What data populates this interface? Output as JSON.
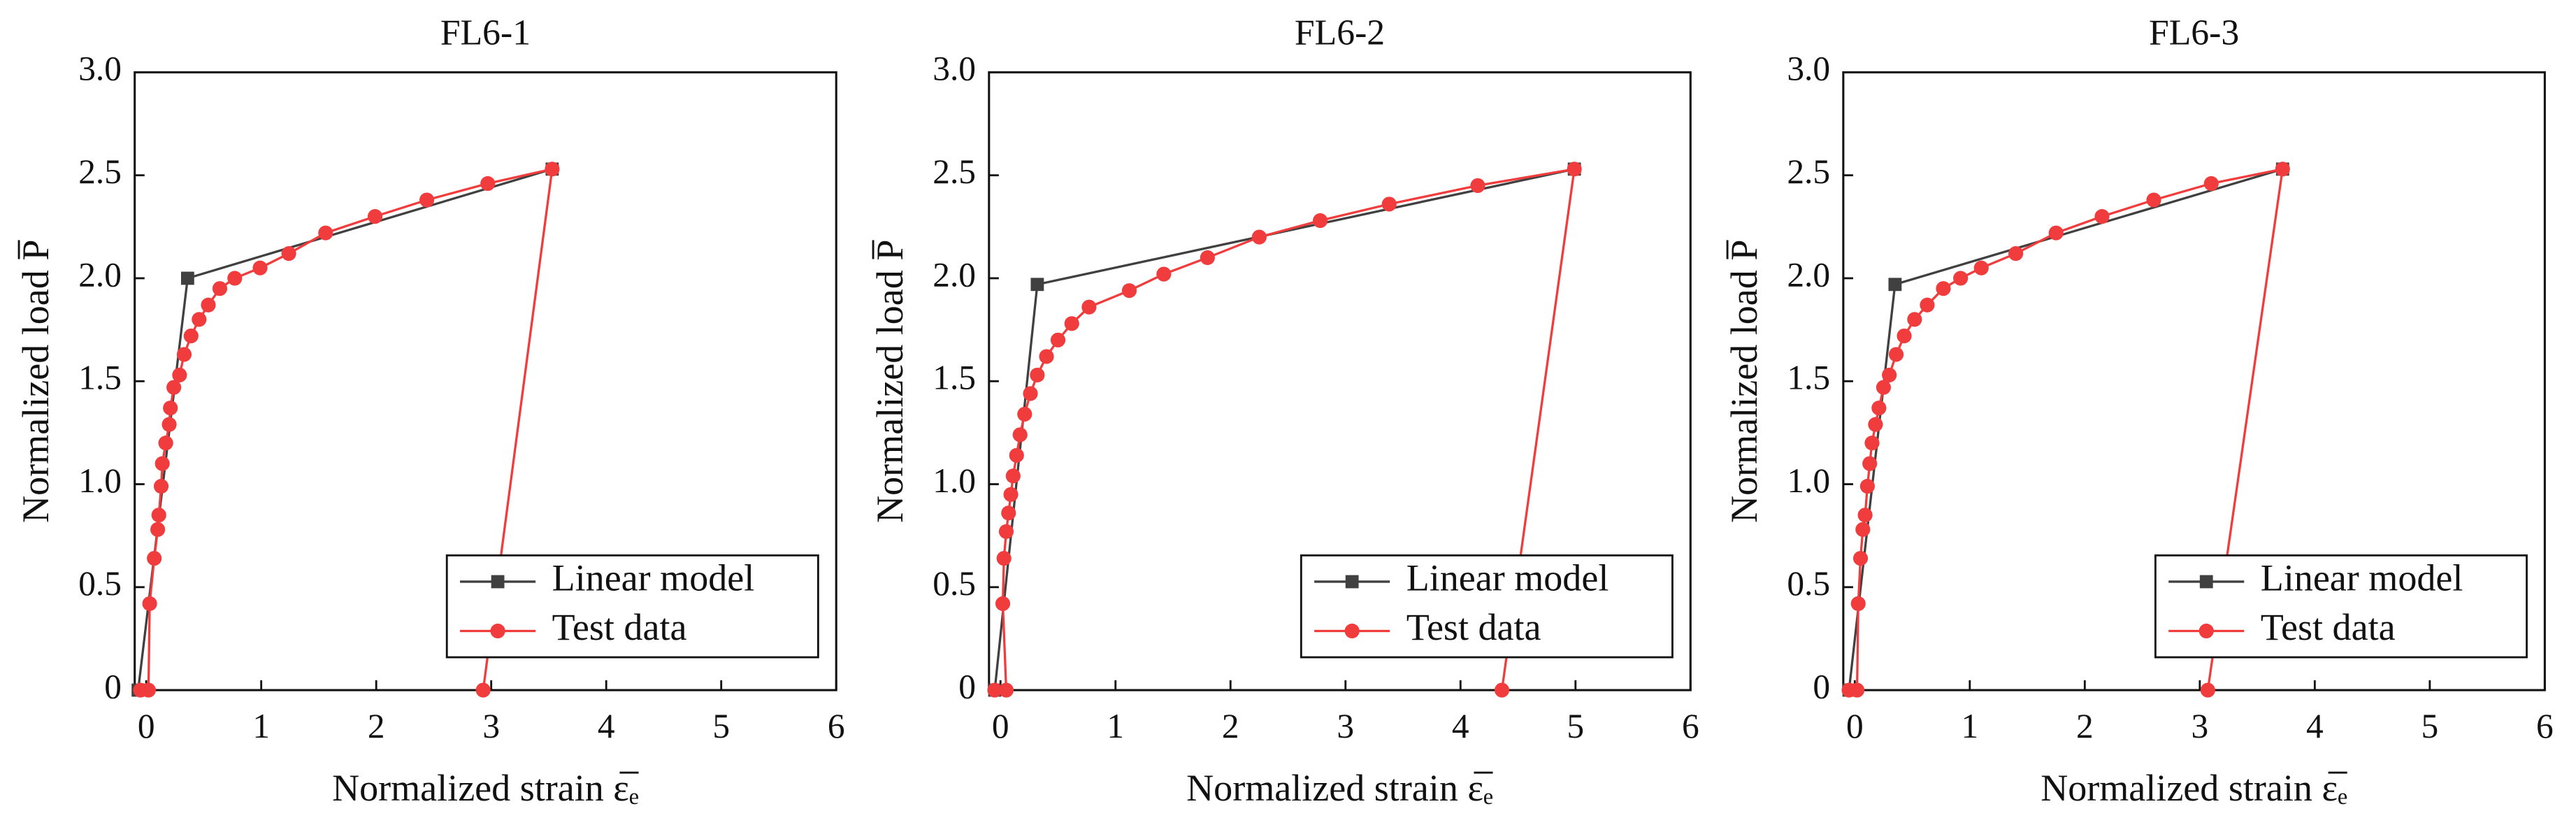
{
  "chart_data": [
    {
      "type": "line",
      "title": "FL6-1",
      "xlabel": "Normalized strain ε̅ₑ",
      "ylabel": "Normalized load P̅",
      "xlim": [
        -0.1,
        6
      ],
      "ylim": [
        0,
        3
      ],
      "xticks": [
        0,
        1,
        2,
        3,
        4,
        5,
        6
      ],
      "yticks": [
        0,
        0.5,
        {
          "value": 1,
          "label": "1.0"
        },
        1.5,
        {
          "value": 2,
          "label": "2.0"
        },
        2.5,
        {
          "value": 3,
          "label": "3.0"
        }
      ],
      "legend": "lower right",
      "series": [
        {
          "name": "Linear model",
          "color": "#404040",
          "marker": "square",
          "x": [
            -0.07,
            0.36,
            3.53
          ],
          "values": [
            0,
            2.0,
            2.53
          ]
        },
        {
          "name": "Test data",
          "color": "#f03c3c",
          "marker": "circle",
          "x": [
            -0.05,
            0.02,
            0.03,
            0.07,
            0.1,
            0.11,
            0.13,
            0.14,
            0.17,
            0.2,
            0.21,
            0.24,
            0.29,
            0.33,
            0.39,
            0.46,
            0.54,
            0.64,
            0.77,
            0.99,
            1.24,
            1.56,
            1.99,
            2.44,
            2.97,
            3.53,
            2.93
          ],
          "values": [
            0,
            0,
            0.42,
            0.64,
            0.78,
            0.85,
            0.99,
            1.1,
            1.2,
            1.29,
            1.37,
            1.47,
            1.53,
            1.63,
            1.72,
            1.8,
            1.87,
            1.95,
            2.0,
            2.05,
            2.12,
            2.22,
            2.3,
            2.38,
            2.46,
            2.53,
            0
          ]
        }
      ]
    },
    {
      "type": "line",
      "title": "FL6-2",
      "xlabel": "Normalized strain ε̅ₑ",
      "ylabel": "Normalized load P̅",
      "xlim": [
        -0.1,
        6
      ],
      "ylim": [
        0,
        3
      ],
      "xticks": [
        0,
        1,
        2,
        3,
        4,
        5,
        6
      ],
      "yticks": [
        0,
        0.5,
        {
          "value": 1,
          "label": "1.0"
        },
        1.5,
        {
          "value": 2,
          "label": "2.0"
        },
        2.5,
        {
          "value": 3,
          "label": "3.0"
        }
      ],
      "legend": "lower right",
      "series": [
        {
          "name": "Linear model",
          "color": "#404040",
          "marker": "square",
          "x": [
            -0.05,
            0.32,
            4.99
          ],
          "values": [
            0,
            1.97,
            2.53
          ]
        },
        {
          "name": "Test data",
          "color": "#f03c3c",
          "marker": "circle",
          "x": [
            -0.05,
            0.05,
            0.02,
            0.03,
            0.05,
            0.07,
            0.09,
            0.11,
            0.14,
            0.17,
            0.21,
            0.26,
            0.32,
            0.4,
            0.5,
            0.62,
            0.77,
            1.12,
            1.42,
            1.8,
            2.25,
            2.78,
            3.38,
            4.15,
            4.99,
            4.36
          ],
          "values": [
            0,
            0,
            0.42,
            0.64,
            0.77,
            0.86,
            0.95,
            1.04,
            1.14,
            1.24,
            1.34,
            1.44,
            1.53,
            1.62,
            1.7,
            1.78,
            1.86,
            1.94,
            2.02,
            2.1,
            2.2,
            2.28,
            2.36,
            2.45,
            2.53,
            0
          ]
        }
      ]
    },
    {
      "type": "line",
      "title": "FL6-3",
      "xlabel": "Normalized strain ε̅ₑ",
      "ylabel": "Normalized load P̅",
      "xlim": [
        -0.1,
        6
      ],
      "ylim": [
        0,
        3
      ],
      "xticks": [
        0,
        1,
        2,
        3,
        4,
        5,
        6
      ],
      "yticks": [
        0,
        0.5,
        {
          "value": 1,
          "label": "1.0"
        },
        1.5,
        {
          "value": 2,
          "label": "2.0"
        },
        2.5,
        {
          "value": 3,
          "label": "3.0"
        }
      ],
      "legend": "lower right",
      "series": [
        {
          "name": "Linear model",
          "color": "#404040",
          "marker": "square",
          "x": [
            -0.05,
            0.35,
            3.72
          ],
          "values": [
            0,
            1.97,
            2.53
          ]
        },
        {
          "name": "Test data",
          "color": "#f03c3c",
          "marker": "circle",
          "x": [
            -0.05,
            0.02,
            0.03,
            0.05,
            0.07,
            0.09,
            0.11,
            0.13,
            0.15,
            0.18,
            0.21,
            0.25,
            0.3,
            0.36,
            0.43,
            0.52,
            0.63,
            0.77,
            0.92,
            1.1,
            1.4,
            1.75,
            2.15,
            2.6,
            3.1,
            3.72,
            3.07
          ],
          "values": [
            0,
            0,
            0.42,
            0.64,
            0.78,
            0.85,
            0.99,
            1.1,
            1.2,
            1.29,
            1.37,
            1.47,
            1.53,
            1.63,
            1.72,
            1.8,
            1.87,
            1.95,
            2.0,
            2.05,
            2.12,
            2.22,
            2.3,
            2.38,
            2.46,
            2.53,
            0
          ]
        }
      ]
    }
  ]
}
